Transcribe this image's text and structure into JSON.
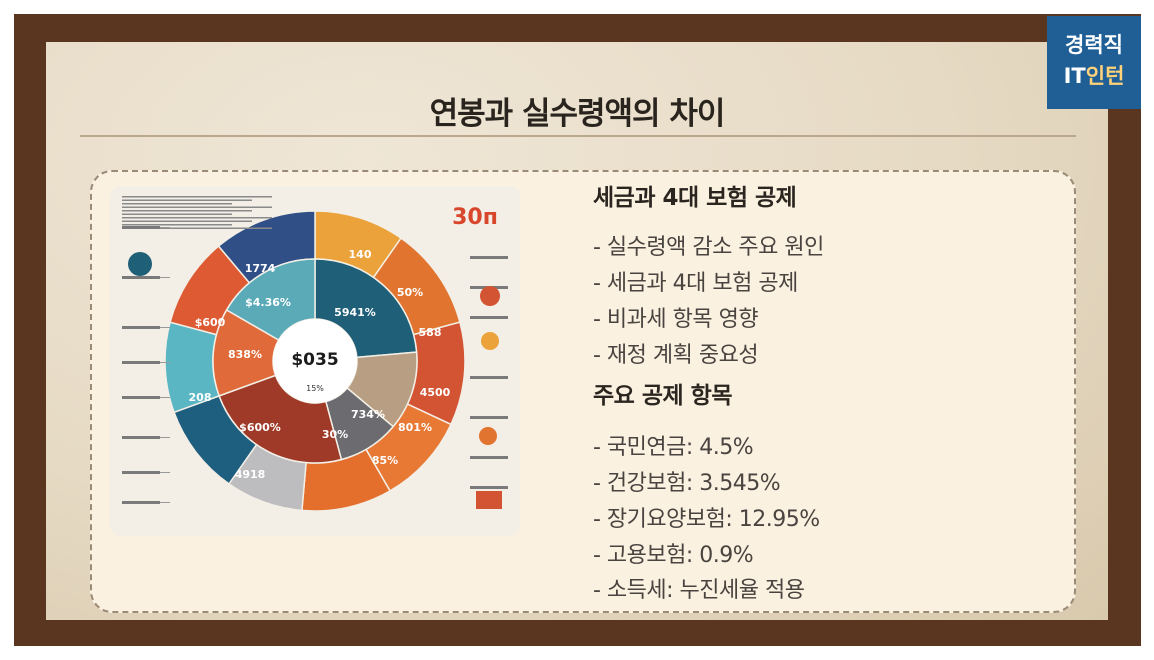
{
  "badge": {
    "line1": "경력직",
    "line2_part1": "IT",
    "line2_part2": "인턴"
  },
  "slide": {
    "title": "연봉과 실수령액의 차이"
  },
  "infographic": {
    "top_right_number": "30п",
    "center_value": "$035",
    "center_sub": "15%",
    "segments": [
      {
        "label": "$4.36%",
        "color": "#5aaab8"
      },
      {
        "label": "5941%",
        "color": "#1f5f78"
      },
      {
        "label": "838%",
        "color": "#e06a3a"
      },
      {
        "label": "$600%",
        "color": "#a03a28"
      },
      {
        "label": "734%",
        "color": "#b89e82"
      },
      {
        "label": "30%",
        "color": "#6c6c70"
      },
      {
        "label": "1774",
        "color": "#2f4f86"
      },
      {
        "label": "140",
        "color": "#eca23a"
      },
      {
        "label": "50%",
        "color": "#e1752f"
      },
      {
        "label": "588",
        "color": "#d35433"
      },
      {
        "label": "4500",
        "color": "#e87935"
      },
      {
        "label": "801%",
        "color": "#e28430"
      },
      {
        "label": "85%",
        "color": "#e46e2c"
      },
      {
        "label": "4918",
        "color": "#1e5f80"
      },
      {
        "label": "208",
        "color": "#5bb6c4"
      },
      {
        "label": "$600",
        "color": "#dd5a33"
      }
    ],
    "colors": {
      "teal": "#1f5f78",
      "light_teal": "#5aaab8",
      "orange": "#e06a3a",
      "red": "#a03a28",
      "beige": "#b89e82",
      "gray": "#6c6c70",
      "navy": "#2f4f86",
      "amber": "#eca23a"
    }
  },
  "section1": {
    "heading": "세금과 4대 보험 공제",
    "items": [
      "- 실수령액 감소 주요 원인",
      "- 세금과 4대 보험 공제",
      "- 비과세 항목 영향",
      "- 재정 계획 중요성"
    ]
  },
  "section2": {
    "heading": "주요 공제 항목",
    "items": [
      "- 국민연금: 4.5%",
      "- 건강보험: 3.545%",
      "- 장기요양보험: 12.95%",
      "- 고용보험: 0.9%",
      "- 소득세: 누진세율 적용"
    ]
  }
}
